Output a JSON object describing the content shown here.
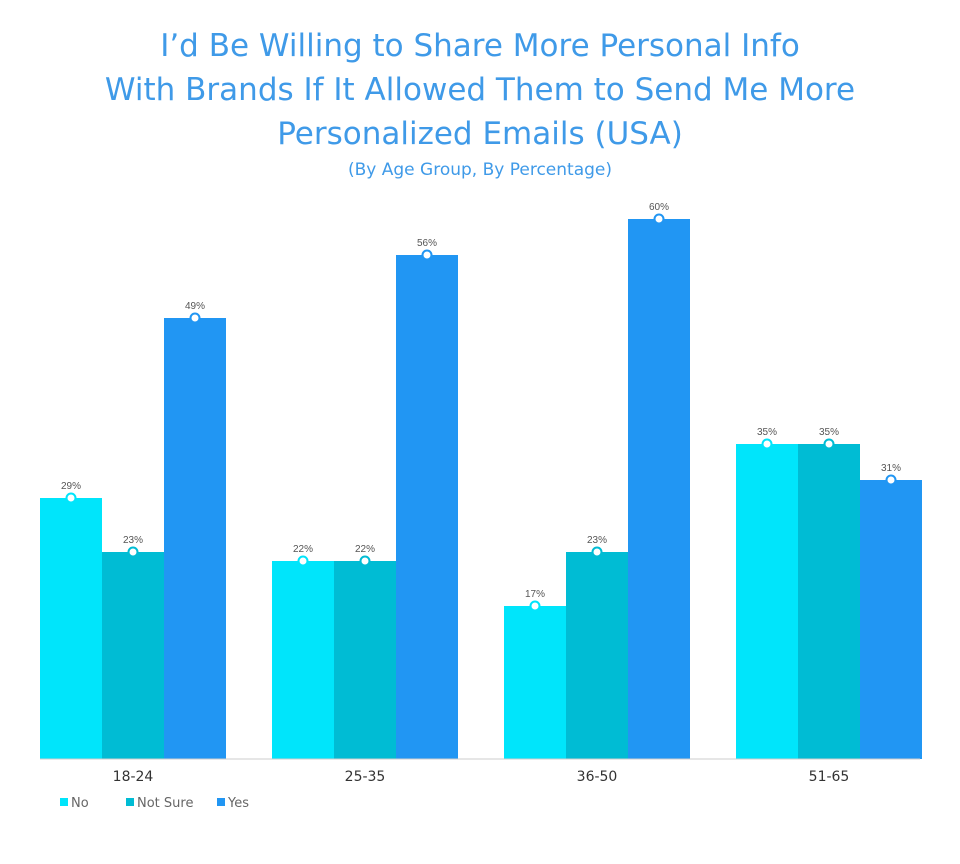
{
  "chart_data": {
    "type": "bar",
    "title_lines": [
      "I’d Be Willing to Share More Personal Info",
      "With Brands If It Allowed Them to Send Me More",
      "Personalized Emails (USA)"
    ],
    "subtitle": "(By Age Group, By Percentage)",
    "categories": [
      "18-24",
      "25-35",
      "36-50",
      "51-65"
    ],
    "series": [
      {
        "name": "No",
        "values": [
          29,
          22,
          17,
          35
        ],
        "labels": [
          "29%",
          "22%",
          "17%",
          "35%"
        ],
        "color": "#00e5fb"
      },
      {
        "name": "Not Sure",
        "values": [
          23,
          22,
          23,
          35
        ],
        "labels": [
          "23%",
          "22%",
          "23%",
          "35%"
        ],
        "color": "#00bcd4"
      },
      {
        "name": "Yes",
        "values": [
          49,
          56,
          60,
          31
        ],
        "labels": [
          "49%",
          "56%",
          "60%",
          "31%"
        ],
        "color": "#2196f3"
      }
    ],
    "ylim": [
      0,
      60
    ],
    "grid": false,
    "legend_placement": "bottom-left",
    "xlabel": "",
    "ylabel": ""
  }
}
